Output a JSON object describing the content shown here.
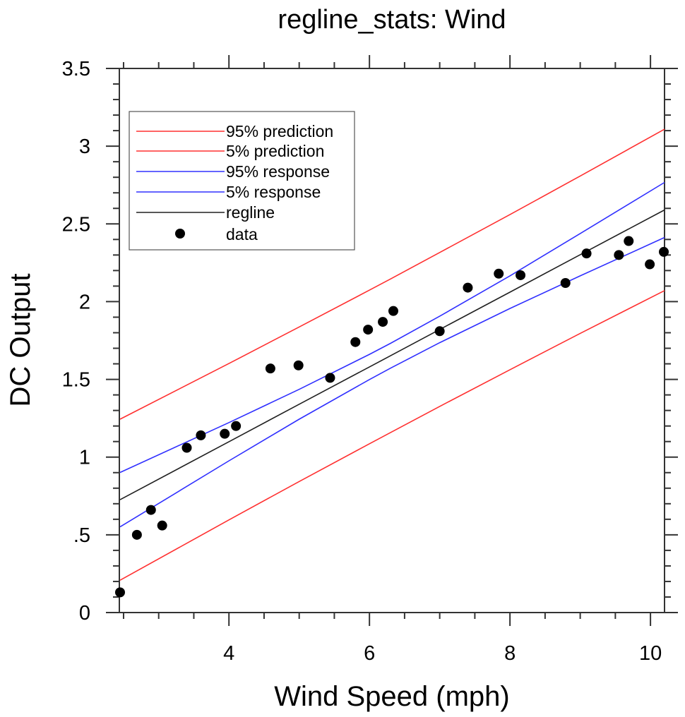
{
  "chart_data": {
    "type": "scatter",
    "title": "regline_stats: Wind",
    "xlabel": "Wind Speed (mph)",
    "ylabel": "DC Output",
    "xlim": [
      2.44,
      10.2
    ],
    "ylim": [
      0,
      3.5
    ],
    "xticks": [
      4,
      6,
      8,
      10
    ],
    "xtick_labels": [
      "4",
      "6",
      "8",
      "10"
    ],
    "yticks": [
      0,
      0.5,
      1,
      1.5,
      2,
      2.5,
      3,
      3.5
    ],
    "ytick_labels": [
      "0",
      ".5",
      "1",
      "1.5",
      "2",
      "2.5",
      "3",
      "3.5"
    ],
    "grid": false,
    "legend_position": "top-left",
    "points": {
      "name": "data",
      "color": "#000000",
      "x": [
        2.45,
        2.69,
        2.89,
        3.05,
        3.4,
        3.6,
        3.94,
        4.1,
        4.59,
        4.99,
        5.44,
        5.8,
        5.98,
        6.19,
        6.34,
        7.0,
        7.4,
        7.84,
        8.15,
        8.79,
        9.09,
        9.55,
        9.69,
        9.99,
        10.19
      ],
      "y": [
        0.13,
        0.5,
        0.66,
        0.56,
        1.06,
        1.14,
        1.15,
        1.2,
        1.57,
        1.59,
        1.51,
        1.74,
        1.82,
        1.87,
        1.94,
        1.81,
        2.09,
        2.18,
        2.17,
        2.12,
        2.31,
        2.3,
        2.39,
        2.24,
        2.32
      ]
    },
    "line_x": [
      2.45,
      4,
      5,
      6,
      6.3,
      7,
      8,
      9,
      10.2
    ],
    "lines": [
      {
        "name": "95% prediction",
        "color": "#ff3030",
        "y": [
          1.244,
          1.602,
          1.837,
          2.074,
          2.146,
          2.316,
          2.56,
          2.808,
          3.109
        ]
      },
      {
        "name": "5% prediction",
        "color": "#ff3030",
        "y": [
          0.208,
          0.596,
          0.843,
          1.086,
          1.158,
          1.326,
          1.562,
          1.796,
          2.071
        ]
      },
      {
        "name": "95% response",
        "color": "#3030ff",
        "y": [
          0.901,
          1.222,
          1.436,
          1.661,
          1.732,
          1.906,
          2.166,
          2.438,
          2.767
        ]
      },
      {
        "name": "5% response",
        "color": "#3030ff",
        "y": [
          0.551,
          0.976,
          1.244,
          1.499,
          1.572,
          1.736,
          1.956,
          2.166,
          2.413
        ]
      },
      {
        "name": "regline",
        "color": "#202020",
        "y": [
          0.726,
          1.099,
          1.34,
          1.58,
          1.652,
          1.821,
          2.061,
          2.302,
          2.59
        ]
      }
    ]
  }
}
